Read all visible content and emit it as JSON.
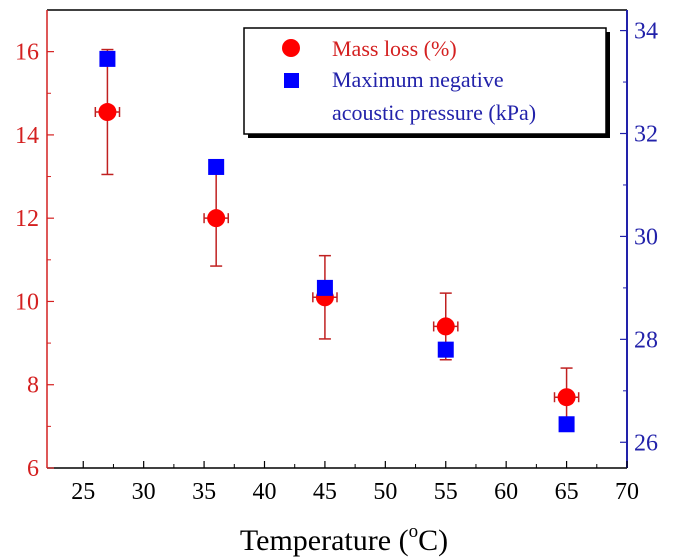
{
  "chart_data": {
    "type": "scatter",
    "xlabel": "Temperature (°C)",
    "xlabel_parts": {
      "main": "Temperature (",
      "degree": "o",
      "unit": "C)"
    },
    "xlim": [
      22,
      70
    ],
    "x_ticks": [
      25,
      30,
      35,
      40,
      45,
      50,
      55,
      60,
      65,
      70
    ],
    "y_left": {
      "ylim": [
        6,
        17
      ],
      "ticks": [
        6,
        8,
        10,
        12,
        14,
        16
      ],
      "color": "#d42020"
    },
    "y_right": {
      "ylim": [
        25.5,
        34.4
      ],
      "ticks": [
        26,
        28,
        30,
        32,
        34
      ],
      "color": "#2222aa"
    },
    "legend_position": "top-right",
    "series": [
      {
        "name": "Mass loss (%)",
        "axis": "left",
        "marker": "circle",
        "color": "#ff0000",
        "points": [
          {
            "x": 27,
            "y": 14.55,
            "y_err_low": 13.05,
            "y_err_high": 16.05,
            "x_err": 1
          },
          {
            "x": 36,
            "y": 12.0,
            "y_err_low": 10.85,
            "y_err_high": 13.15,
            "x_err": 1
          },
          {
            "x": 45,
            "y": 10.1,
            "y_err_low": 9.1,
            "y_err_high": 11.1,
            "x_err": 1
          },
          {
            "x": 55,
            "y": 9.4,
            "y_err_low": 8.6,
            "y_err_high": 10.2,
            "x_err": 1
          },
          {
            "x": 65,
            "y": 7.7,
            "y_err_low": 7.0,
            "y_err_high": 8.4,
            "x_err": 1
          }
        ]
      },
      {
        "name": "Maximum negative acoustic pressure (kPa)",
        "legend_lines": [
          "Maximum negative",
          "acoustic pressure (kPa)"
        ],
        "axis": "right",
        "marker": "square",
        "color": "#0000ff",
        "points": [
          {
            "x": 27,
            "y": 33.45
          },
          {
            "x": 36,
            "y": 31.35
          },
          {
            "x": 45,
            "y": 29.0
          },
          {
            "x": 55,
            "y": 27.8
          },
          {
            "x": 65,
            "y": 26.35
          }
        ]
      }
    ]
  }
}
